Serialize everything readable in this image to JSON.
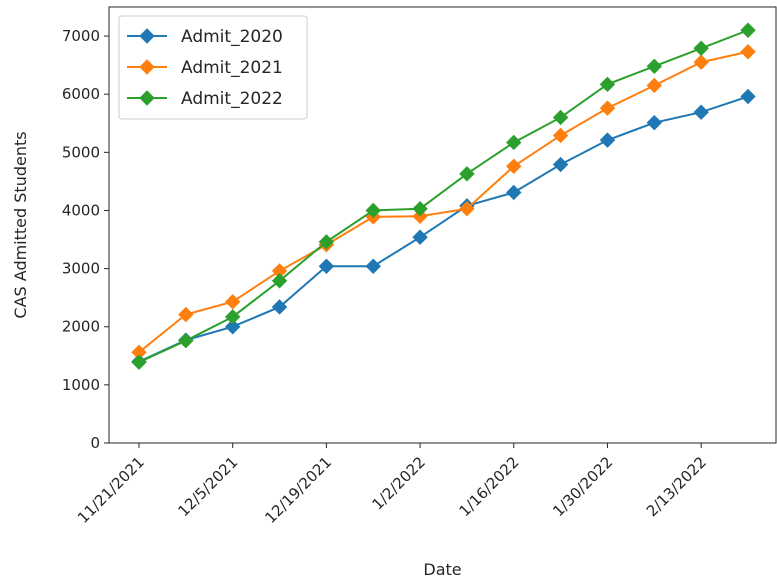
{
  "chart_data": {
    "type": "line",
    "title": "",
    "xlabel": "Date",
    "ylabel": "CAS Admitted Students",
    "x": [
      "11/21/2021",
      "11/28/2021",
      "12/5/2021",
      "12/12/2021",
      "12/19/2021",
      "12/26/2021",
      "1/2/2022",
      "1/9/2022",
      "1/16/2022",
      "1/23/2022",
      "1/30/2022",
      "2/6/2022",
      "2/13/2022",
      "2/20/2022"
    ],
    "x_tick_labels": [
      "11/21/2021",
      "12/5/2021",
      "12/19/2021",
      "1/2/2022",
      "1/16/2022",
      "1/30/2022",
      "2/13/2022"
    ],
    "ylim": [
      0,
      7500
    ],
    "y_ticks": [
      0,
      1000,
      2000,
      3000,
      4000,
      5000,
      6000,
      7000
    ],
    "grid": false,
    "legend_position": "upper-left",
    "marker": "diamond",
    "series": [
      {
        "name": "Admit_2020",
        "color": "#1f77b4",
        "values": [
          1400,
          1770,
          2000,
          2340,
          3040,
          3040,
          3540,
          4080,
          4310,
          4790,
          5210,
          5510,
          5690,
          5960
        ]
      },
      {
        "name": "Admit_2021",
        "color": "#ff7f0e",
        "values": [
          1560,
          2210,
          2430,
          2960,
          3410,
          3890,
          3900,
          4030,
          4760,
          5290,
          5760,
          6150,
          6550,
          6730
        ]
      },
      {
        "name": "Admit_2022",
        "color": "#2ca02c",
        "values": [
          1390,
          1760,
          2170,
          2790,
          3460,
          4000,
          4030,
          4630,
          5170,
          5600,
          6170,
          6480,
          6790,
          7100
        ]
      }
    ]
  }
}
